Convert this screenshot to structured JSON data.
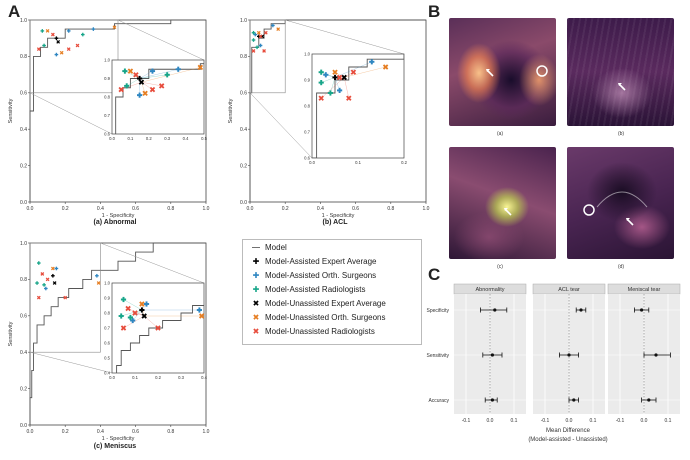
{
  "figure": {
    "panel_letters": [
      "A",
      "B",
      "C"
    ],
    "captions": {
      "a": "(a) Abnormal",
      "b": "(b) ACL",
      "c": "(c) Meniscus"
    },
    "image_captions": [
      "(a)",
      "(b)",
      "(c)",
      "(d)"
    ],
    "legend": [
      {
        "label": "Model",
        "symbol": "—",
        "color": "#555555"
      },
      {
        "label": "Model-Assisted Expert Average",
        "symbol": "✚",
        "color": "#000000"
      },
      {
        "label": "Model-Assisted Orth. Surgeons",
        "symbol": "✚",
        "color": "#2e86c1"
      },
      {
        "label": "Model-Assisted Radiologists",
        "symbol": "✚",
        "color": "#17a589"
      },
      {
        "label": "Model-Unassisted Expert Average",
        "symbol": "✖",
        "color": "#000000"
      },
      {
        "label": "Model-Unassisted Orth. Surgeons",
        "symbol": "✖",
        "color": "#e67e22"
      },
      {
        "label": "Model-Unassisted Radiologists",
        "symbol": "✖",
        "color": "#e74c3c"
      }
    ]
  },
  "chart_data": [
    {
      "type": "scatter",
      "id": "abnormal",
      "title": "(a) Abnormal",
      "xlabel": "1 - Specificity",
      "ylabel": "Sensitivity",
      "xlim": [
        0,
        1
      ],
      "ylim": [
        0,
        1
      ],
      "xticks": [
        "0.0",
        "0.2",
        "0.4",
        "0.6",
        "0.8",
        "1.0"
      ],
      "yticks": [
        "0.0",
        "0.2",
        "0.4",
        "0.6",
        "0.8",
        "1.0"
      ],
      "roc": [
        [
          0,
          0
        ],
        [
          0,
          0.5
        ],
        [
          0.02,
          0.5
        ],
        [
          0.02,
          0.8
        ],
        [
          0.06,
          0.8
        ],
        [
          0.06,
          0.85
        ],
        [
          0.1,
          0.85
        ],
        [
          0.1,
          0.9
        ],
        [
          0.2,
          0.9
        ],
        [
          0.2,
          0.95
        ],
        [
          0.48,
          0.95
        ],
        [
          0.48,
          0.98
        ],
        [
          0.8,
          0.98
        ],
        [
          0.8,
          1.0
        ],
        [
          1,
          1
        ]
      ],
      "inset": {
        "xlim": [
          0,
          0.5
        ],
        "ylim": [
          0.6,
          1.0
        ],
        "xticks": [
          "0.0",
          "0.1",
          "0.2",
          "0.3",
          "0.4",
          "0.5"
        ],
        "yticks": [
          "0.6",
          "0.7",
          "0.8",
          "0.9",
          "1.0"
        ]
      },
      "points": [
        {
          "series": "Model-Assisted Expert Average",
          "x": 0.15,
          "y": 0.9
        },
        {
          "series": "Model-Assisted Orth. Surgeons",
          "x": 0.22,
          "y": 0.94
        },
        {
          "series": "Model-Assisted Orth. Surgeons",
          "x": 0.36,
          "y": 0.95
        },
        {
          "series": "Model-Assisted Orth. Surgeons",
          "x": 0.15,
          "y": 0.81
        },
        {
          "series": "Model-Assisted Radiologists",
          "x": 0.07,
          "y": 0.94
        },
        {
          "series": "Model-Assisted Radiologists",
          "x": 0.08,
          "y": 0.86
        },
        {
          "series": "Model-Assisted Radiologists",
          "x": 0.3,
          "y": 0.92
        },
        {
          "series": "Model-Unassisted Expert Average",
          "x": 0.16,
          "y": 0.88
        },
        {
          "series": "Model-Unassisted Orth. Surgeons",
          "x": 0.18,
          "y": 0.82
        },
        {
          "series": "Model-Unassisted Orth. Surgeons",
          "x": 0.1,
          "y": 0.94
        },
        {
          "series": "Model-Unassisted Orth. Surgeons",
          "x": 0.48,
          "y": 0.96
        },
        {
          "series": "Model-Unassisted Radiologists",
          "x": 0.05,
          "y": 0.84
        },
        {
          "series": "Model-Unassisted Radiologists",
          "x": 0.22,
          "y": 0.84
        },
        {
          "series": "Model-Unassisted Radiologists",
          "x": 0.27,
          "y": 0.86
        },
        {
          "series": "Model-Unassisted Radiologists",
          "x": 0.13,
          "y": 0.92
        }
      ]
    },
    {
      "type": "scatter",
      "id": "acl",
      "title": "(b) ACL",
      "xlabel": "1 - Specificity",
      "ylabel": "Sensitivity",
      "xlim": [
        0,
        1
      ],
      "ylim": [
        0,
        1
      ],
      "xticks": [
        "0.0",
        "0.2",
        "0.4",
        "0.6",
        "0.8",
        "1.0"
      ],
      "yticks": [
        "0.0",
        "0.2",
        "0.4",
        "0.6",
        "0.8",
        "1.0"
      ],
      "roc": [
        [
          0,
          0
        ],
        [
          0,
          0.6
        ],
        [
          0.01,
          0.6
        ],
        [
          0.01,
          0.85
        ],
        [
          0.05,
          0.85
        ],
        [
          0.05,
          0.9
        ],
        [
          0.08,
          0.9
        ],
        [
          0.08,
          0.95
        ],
        [
          0.12,
          0.95
        ],
        [
          0.12,
          0.98
        ],
        [
          0.2,
          0.98
        ],
        [
          0.2,
          1.0
        ],
        [
          1,
          1
        ]
      ],
      "inset": {
        "xlim": [
          0,
          0.2
        ],
        "ylim": [
          0.6,
          1.0
        ],
        "xticks": [
          "0.0",
          "0.1",
          "0.2"
        ],
        "yticks": [
          "0.6",
          "0.7",
          "0.8",
          "0.9",
          "1.0"
        ]
      },
      "points": [
        {
          "series": "Model-Assisted Expert Average",
          "x": 0.05,
          "y": 0.91
        },
        {
          "series": "Model-Assisted Orth. Surgeons",
          "x": 0.13,
          "y": 0.97
        },
        {
          "series": "Model-Assisted Orth. Surgeons",
          "x": 0.03,
          "y": 0.92
        },
        {
          "series": "Model-Assisted Orth. Surgeons",
          "x": 0.06,
          "y": 0.86
        },
        {
          "series": "Model-Assisted Radiologists",
          "x": 0.02,
          "y": 0.93
        },
        {
          "series": "Model-Assisted Radiologists",
          "x": 0.04,
          "y": 0.85
        },
        {
          "series": "Model-Assisted Radiologists",
          "x": 0.02,
          "y": 0.89
        },
        {
          "series": "Model-Unassisted Expert Average",
          "x": 0.07,
          "y": 0.91
        },
        {
          "series": "Model-Unassisted Orth. Surgeons",
          "x": 0.16,
          "y": 0.95
        },
        {
          "series": "Model-Unassisted Orth. Surgeons",
          "x": 0.05,
          "y": 0.93
        },
        {
          "series": "Model-Unassisted Radiologists",
          "x": 0.02,
          "y": 0.83
        },
        {
          "series": "Model-Unassisted Radiologists",
          "x": 0.06,
          "y": 0.91
        },
        {
          "series": "Model-Unassisted Radiologists",
          "x": 0.09,
          "y": 0.93
        },
        {
          "series": "Model-Unassisted Radiologists",
          "x": 0.08,
          "y": 0.83
        }
      ]
    },
    {
      "type": "scatter",
      "id": "meniscus",
      "title": "(c) Meniscus",
      "xlabel": "1 - Specificity",
      "ylabel": "Sensitivity",
      "xlim": [
        0,
        1
      ],
      "ylim": [
        0,
        1
      ],
      "xticks": [
        "0.0",
        "0.2",
        "0.4",
        "0.6",
        "0.8",
        "1.0"
      ],
      "yticks": [
        "0.0",
        "0.2",
        "0.4",
        "0.6",
        "0.8",
        "1.0"
      ],
      "roc": [
        [
          0,
          0
        ],
        [
          0,
          0.15
        ],
        [
          0.01,
          0.15
        ],
        [
          0.01,
          0.3
        ],
        [
          0.02,
          0.3
        ],
        [
          0.02,
          0.45
        ],
        [
          0.04,
          0.45
        ],
        [
          0.04,
          0.55
        ],
        [
          0.08,
          0.55
        ],
        [
          0.08,
          0.6
        ],
        [
          0.12,
          0.6
        ],
        [
          0.12,
          0.65
        ],
        [
          0.16,
          0.65
        ],
        [
          0.16,
          0.7
        ],
        [
          0.22,
          0.7
        ],
        [
          0.22,
          0.75
        ],
        [
          0.3,
          0.75
        ],
        [
          0.3,
          0.8
        ],
        [
          0.35,
          0.8
        ],
        [
          0.35,
          0.85
        ],
        [
          0.5,
          0.85
        ],
        [
          0.5,
          0.9
        ],
        [
          0.6,
          0.9
        ],
        [
          0.6,
          0.95
        ],
        [
          0.7,
          0.95
        ],
        [
          0.7,
          1.0
        ],
        [
          1,
          1
        ]
      ],
      "inset": {
        "xlim": [
          0,
          0.4
        ],
        "ylim": [
          0.4,
          1.0
        ],
        "xticks": [
          "0.0",
          "0.1",
          "0.2",
          "0.3",
          "0.4"
        ],
        "yticks": [
          "0.4",
          "0.5",
          "0.6",
          "0.7",
          "0.8",
          "0.9",
          "1.0"
        ]
      },
      "points": [
        {
          "series": "Model-Assisted Expert Average",
          "x": 0.13,
          "y": 0.82
        },
        {
          "series": "Model-Assisted Orth. Surgeons",
          "x": 0.38,
          "y": 0.82
        },
        {
          "series": "Model-Assisted Orth. Surgeons",
          "x": 0.15,
          "y": 0.86
        },
        {
          "series": "Model-Assisted Orth. Surgeons",
          "x": 0.09,
          "y": 0.75
        },
        {
          "series": "Model-Assisted Radiologists",
          "x": 0.05,
          "y": 0.89
        },
        {
          "series": "Model-Assisted Radiologists",
          "x": 0.08,
          "y": 0.77
        },
        {
          "series": "Model-Assisted Radiologists",
          "x": 0.04,
          "y": 0.78
        },
        {
          "series": "Model-Unassisted Expert Average",
          "x": 0.14,
          "y": 0.78
        },
        {
          "series": "Model-Unassisted Orth. Surgeons",
          "x": 0.13,
          "y": 0.86
        },
        {
          "series": "Model-Unassisted Orth. Surgeons",
          "x": 0.39,
          "y": 0.78
        },
        {
          "series": "Model-Unassisted Radiologists",
          "x": 0.07,
          "y": 0.83
        },
        {
          "series": "Model-Unassisted Radiologists",
          "x": 0.1,
          "y": 0.8
        },
        {
          "series": "Model-Unassisted Radiologists",
          "x": 0.05,
          "y": 0.7
        },
        {
          "series": "Model-Unassisted Radiologists",
          "x": 0.2,
          "y": 0.7
        }
      ]
    },
    {
      "type": "forest",
      "id": "mean-difference",
      "panels": [
        "Abnormality",
        "ACL tear",
        "Meniscal tear"
      ],
      "rows": [
        "Specificity",
        "Sensitivity",
        "Accuracy"
      ],
      "xlabel": "Mean Difference",
      "xlabel2": "(Model-assisted - Unassisted)",
      "xlim": [
        -0.15,
        0.15
      ],
      "xticks": [
        "-0.1",
        "0.0",
        "0.1"
      ],
      "values": [
        [
          {
            "mean": 0.02,
            "lo": -0.04,
            "hi": 0.07
          },
          {
            "mean": 0.01,
            "lo": -0.03,
            "hi": 0.05
          },
          {
            "mean": 0.01,
            "lo": -0.02,
            "hi": 0.03
          }
        ],
        [
          {
            "mean": 0.05,
            "lo": 0.03,
            "hi": 0.07
          },
          {
            "mean": 0.0,
            "lo": -0.04,
            "hi": 0.04
          },
          {
            "mean": 0.02,
            "lo": 0.0,
            "hi": 0.04
          }
        ],
        [
          {
            "mean": -0.01,
            "lo": -0.04,
            "hi": 0.02
          },
          {
            "mean": 0.05,
            "lo": 0.0,
            "hi": 0.11
          },
          {
            "mean": 0.02,
            "lo": -0.01,
            "hi": 0.05
          }
        ]
      ]
    }
  ]
}
